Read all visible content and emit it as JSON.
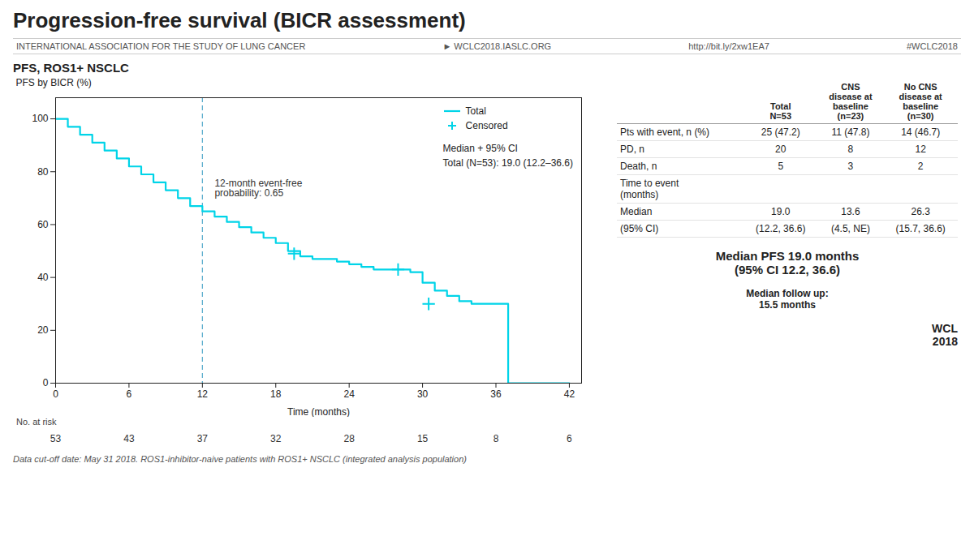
{
  "chart_data": {
    "type": "line",
    "title": "Progression-free survival (BICR assessment)",
    "header": [
      "INTERNATIONAL ASSOCIATION FOR THE STUDY OF LUNG CANCER",
      "► WCLC2018.IASLC.ORG",
      "http://bit.ly/2xw1EA7",
      "#WCLC2018"
    ],
    "subtitle": "PFS, ROS1+ NSCLC",
    "xlabel": "Time (months)",
    "ylabel": "PFS by BICR (%)",
    "xlim": [
      0,
      43
    ],
    "ylim": [
      0,
      108
    ],
    "xticks": [
      0,
      6,
      12,
      18,
      24,
      30,
      36,
      42
    ],
    "yticks": [
      0,
      20,
      40,
      60,
      80,
      100
    ],
    "series": [
      {
        "name": "Total",
        "type": "step",
        "color": "#00d4e8",
        "x": [
          0,
          1,
          2,
          3,
          4,
          5,
          6,
          7,
          8,
          9,
          10,
          11,
          12,
          13,
          14,
          15,
          16,
          17,
          18,
          19,
          20,
          21,
          22,
          23,
          24,
          25,
          26,
          27,
          28,
          29,
          30,
          31,
          32,
          33,
          34,
          35,
          36,
          37,
          38,
          39,
          40,
          41,
          42
        ],
        "values": [
          100,
          97,
          94,
          91,
          88,
          85,
          82,
          79,
          76,
          73,
          70,
          67,
          65,
          63,
          61,
          59,
          57,
          55,
          53,
          50,
          48,
          47,
          47,
          46,
          45,
          44,
          43,
          43,
          43,
          42,
          38,
          35,
          33,
          31,
          30,
          30,
          30,
          0,
          0,
          0,
          0,
          0,
          0
        ]
      },
      {
        "name": "Censored",
        "type": "scatter",
        "marker": "plus",
        "color": "#00d4e8",
        "x": [
          19.5,
          28,
          30.5
        ],
        "values": [
          49,
          43,
          30
        ]
      }
    ],
    "legend": "upper right",
    "reference_lines": [
      {
        "x": 12,
        "color": "#55aacc",
        "line_style": "dashed"
      }
    ],
    "annotations": [
      {
        "text": "12-month event-free\nprobability: 0.65",
        "x": 13,
        "y": 77
      },
      {
        "text": "Median + 95% CI"
      },
      {
        "text": "Total (N=53): 19.0 (12.2–36.6)"
      }
    ],
    "at_risk": {
      "label": "No. at risk",
      "x": [
        0,
        6,
        12,
        18,
        24,
        30,
        36,
        42
      ],
      "values": [
        53,
        43,
        37,
        32,
        28,
        15,
        8,
        6
      ]
    },
    "table": {
      "columns": [
        "Total\nN=53",
        "CNS\ndisease at\nbaseline\n(n=23)",
        "No CNS\ndisease at\nbaseline\n(n=30)"
      ],
      "rows": [
        {
          "label": "Pts with event, n (%)",
          "values": [
            "25 (47.2)",
            "11 (47.8)",
            "14 (46.7)"
          ]
        },
        {
          "label": "PD, n",
          "values": [
            "20",
            "8",
            "12"
          ]
        },
        {
          "label": "Death, n",
          "values": [
            "5",
            "3",
            "2"
          ]
        },
        {
          "label": "Time to event\n(months)"
        },
        {
          "label": "Median",
          "values": [
            "19.0",
            "13.6",
            "26.3"
          ]
        },
        {
          "label": "(95% CI)",
          "values": [
            "(12.2, 36.6)",
            "(4.5, NE)",
            "(15.7, 36.6)"
          ]
        }
      ]
    },
    "notes": [
      "Median PFS 19.0 months\n(95% CI 12.2, 36.6)",
      "Median follow up:\n15.5 months"
    ],
    "logo": [
      "WCL",
      "2018"
    ],
    "footnote": "Data cut-off date: May 31 2018. ROS1-inhibitor-naive patients with ROS1+ NSCLC (integrated analysis population)"
  }
}
